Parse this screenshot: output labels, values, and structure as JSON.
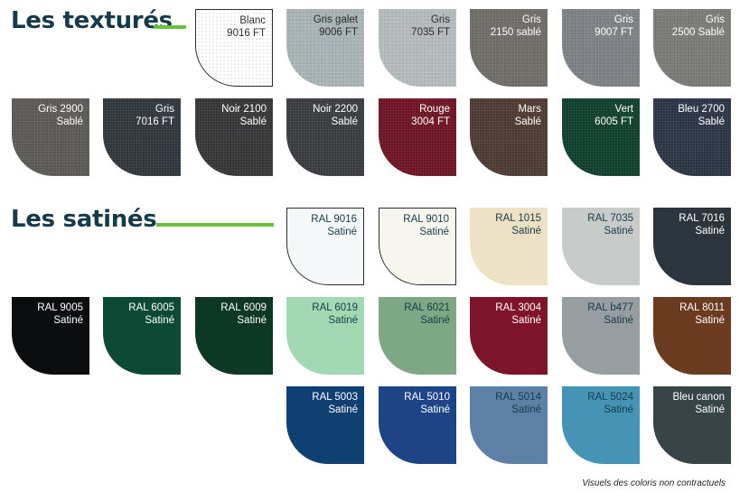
{
  "sections": {
    "textured": {
      "title": "Les texturés",
      "accent": "#6cbf3e"
    },
    "satin": {
      "title": "Les satinés",
      "accent": "#6cbf3e"
    }
  },
  "textured_swatches": [
    {
      "line1": "Blanc",
      "line2": "9016 FT",
      "color": "#ffffff",
      "text_color": "#333333",
      "outlined": true
    },
    {
      "line1": "Gris galet",
      "line2": "9006 FT",
      "color": "#a9b4b7",
      "text_color": "#2b2b2b"
    },
    {
      "line1": "Gris",
      "line2": "7035 FT",
      "color": "#b5bbbd",
      "text_color": "#2b2b2b"
    },
    {
      "line1": "Gris",
      "line2": "2150 sablé",
      "color": "#6f6c67",
      "text_color": "#ffffff"
    },
    {
      "line1": "Gris",
      "line2": "9007 FT",
      "color": "#7d8185",
      "text_color": "#ffffff"
    },
    {
      "line1": "Gris",
      "line2": "2500 Sablé",
      "color": "#7a7b76",
      "text_color": "#ffffff"
    },
    {
      "line1": "Gris 2900",
      "line2": "Sablé",
      "color": "#5b5956",
      "text_color": "#ffffff"
    },
    {
      "line1": "Gris",
      "line2": "7016 FT",
      "color": "#2f363c",
      "text_color": "#ffffff"
    },
    {
      "line1": "Noir 2100",
      "line2": "Sablé",
      "color": "#353537",
      "text_color": "#ffffff"
    },
    {
      "line1": "Noir 2200",
      "line2": "Sablé",
      "color": "#393b3f",
      "text_color": "#ffffff"
    },
    {
      "line1": "Rouge",
      "line2": "3004 FT",
      "color": "#6e1322",
      "text_color": "#ffffff"
    },
    {
      "line1": "Mars",
      "line2": "Sablé",
      "color": "#4d3a31",
      "text_color": "#ffffff"
    },
    {
      "line1": "Vert",
      "line2": "6005 FT",
      "color": "#0e3f2c",
      "text_color": "#ffffff"
    },
    {
      "line1": "Bleu 2700",
      "line2": "Sablé",
      "color": "#2b3345",
      "text_color": "#ffffff"
    }
  ],
  "satin_swatches": [
    {
      "line1": "RAL 9016",
      "line2": "Satiné",
      "color": "#f5f8f8",
      "text_color": "#163a4a",
      "outlined": true
    },
    {
      "line1": "RAL 9010",
      "line2": "Satiné",
      "color": "#f7f6ee",
      "text_color": "#163a4a",
      "outlined": true
    },
    {
      "line1": "RAL 1015",
      "line2": "Satiné",
      "color": "#ede2c6",
      "text_color": "#163a4a"
    },
    {
      "line1": "RAL 7035",
      "line2": "Satiné",
      "color": "#c7ccca",
      "text_color": "#163a4a"
    },
    {
      "line1": "RAL 7016",
      "line2": "Satiné",
      "color": "#2c353c",
      "text_color": "#ffffff"
    },
    {
      "line1": "RAL 9005",
      "line2": "Satiné",
      "color": "#0c0d0f",
      "text_color": "#ffffff"
    },
    {
      "line1": "RAL 6005",
      "line2": "Satiné",
      "color": "#0c4a36",
      "text_color": "#ffffff"
    },
    {
      "line1": "RAL 6009",
      "line2": "Satiné",
      "color": "#0d3924",
      "text_color": "#ffffff"
    },
    {
      "line1": "RAL 6019",
      "line2": "Satiné",
      "color": "#a2d9b2",
      "text_color": "#163a4a"
    },
    {
      "line1": "RAL 6021",
      "line2": "Satiné",
      "color": "#7ea884",
      "text_color": "#163a4a"
    },
    {
      "line1": "RAL 3004",
      "line2": "Satiné",
      "color": "#7d1429",
      "text_color": "#ffffff"
    },
    {
      "line1": "RAL b477",
      "line2": "Satiné",
      "color": "#969ea2",
      "text_color": "#163a4a"
    },
    {
      "line1": "RAL 8011",
      "line2": "Satiné",
      "color": "#6b3b20",
      "text_color": "#ffffff"
    },
    {
      "line1": "RAL 5003",
      "line2": "Satiné",
      "color": "#103f72",
      "text_color": "#ffffff"
    },
    {
      "line1": "RAL 5010",
      "line2": "Satiné",
      "color": "#1d4486",
      "text_color": "#ffffff"
    },
    {
      "line1": "RAL 5014",
      "line2": "Satiné",
      "color": "#5f80a6",
      "text_color": "#163a4a"
    },
    {
      "line1": "RAL 5024",
      "line2": "Satiné",
      "color": "#4593b5",
      "text_color": "#163a4a"
    },
    {
      "line1": "Bleu canon",
      "line2": "Satiné",
      "color": "#374549",
      "text_color": "#ffffff"
    }
  ],
  "footnote": "Visuels des coloris non contractuels"
}
